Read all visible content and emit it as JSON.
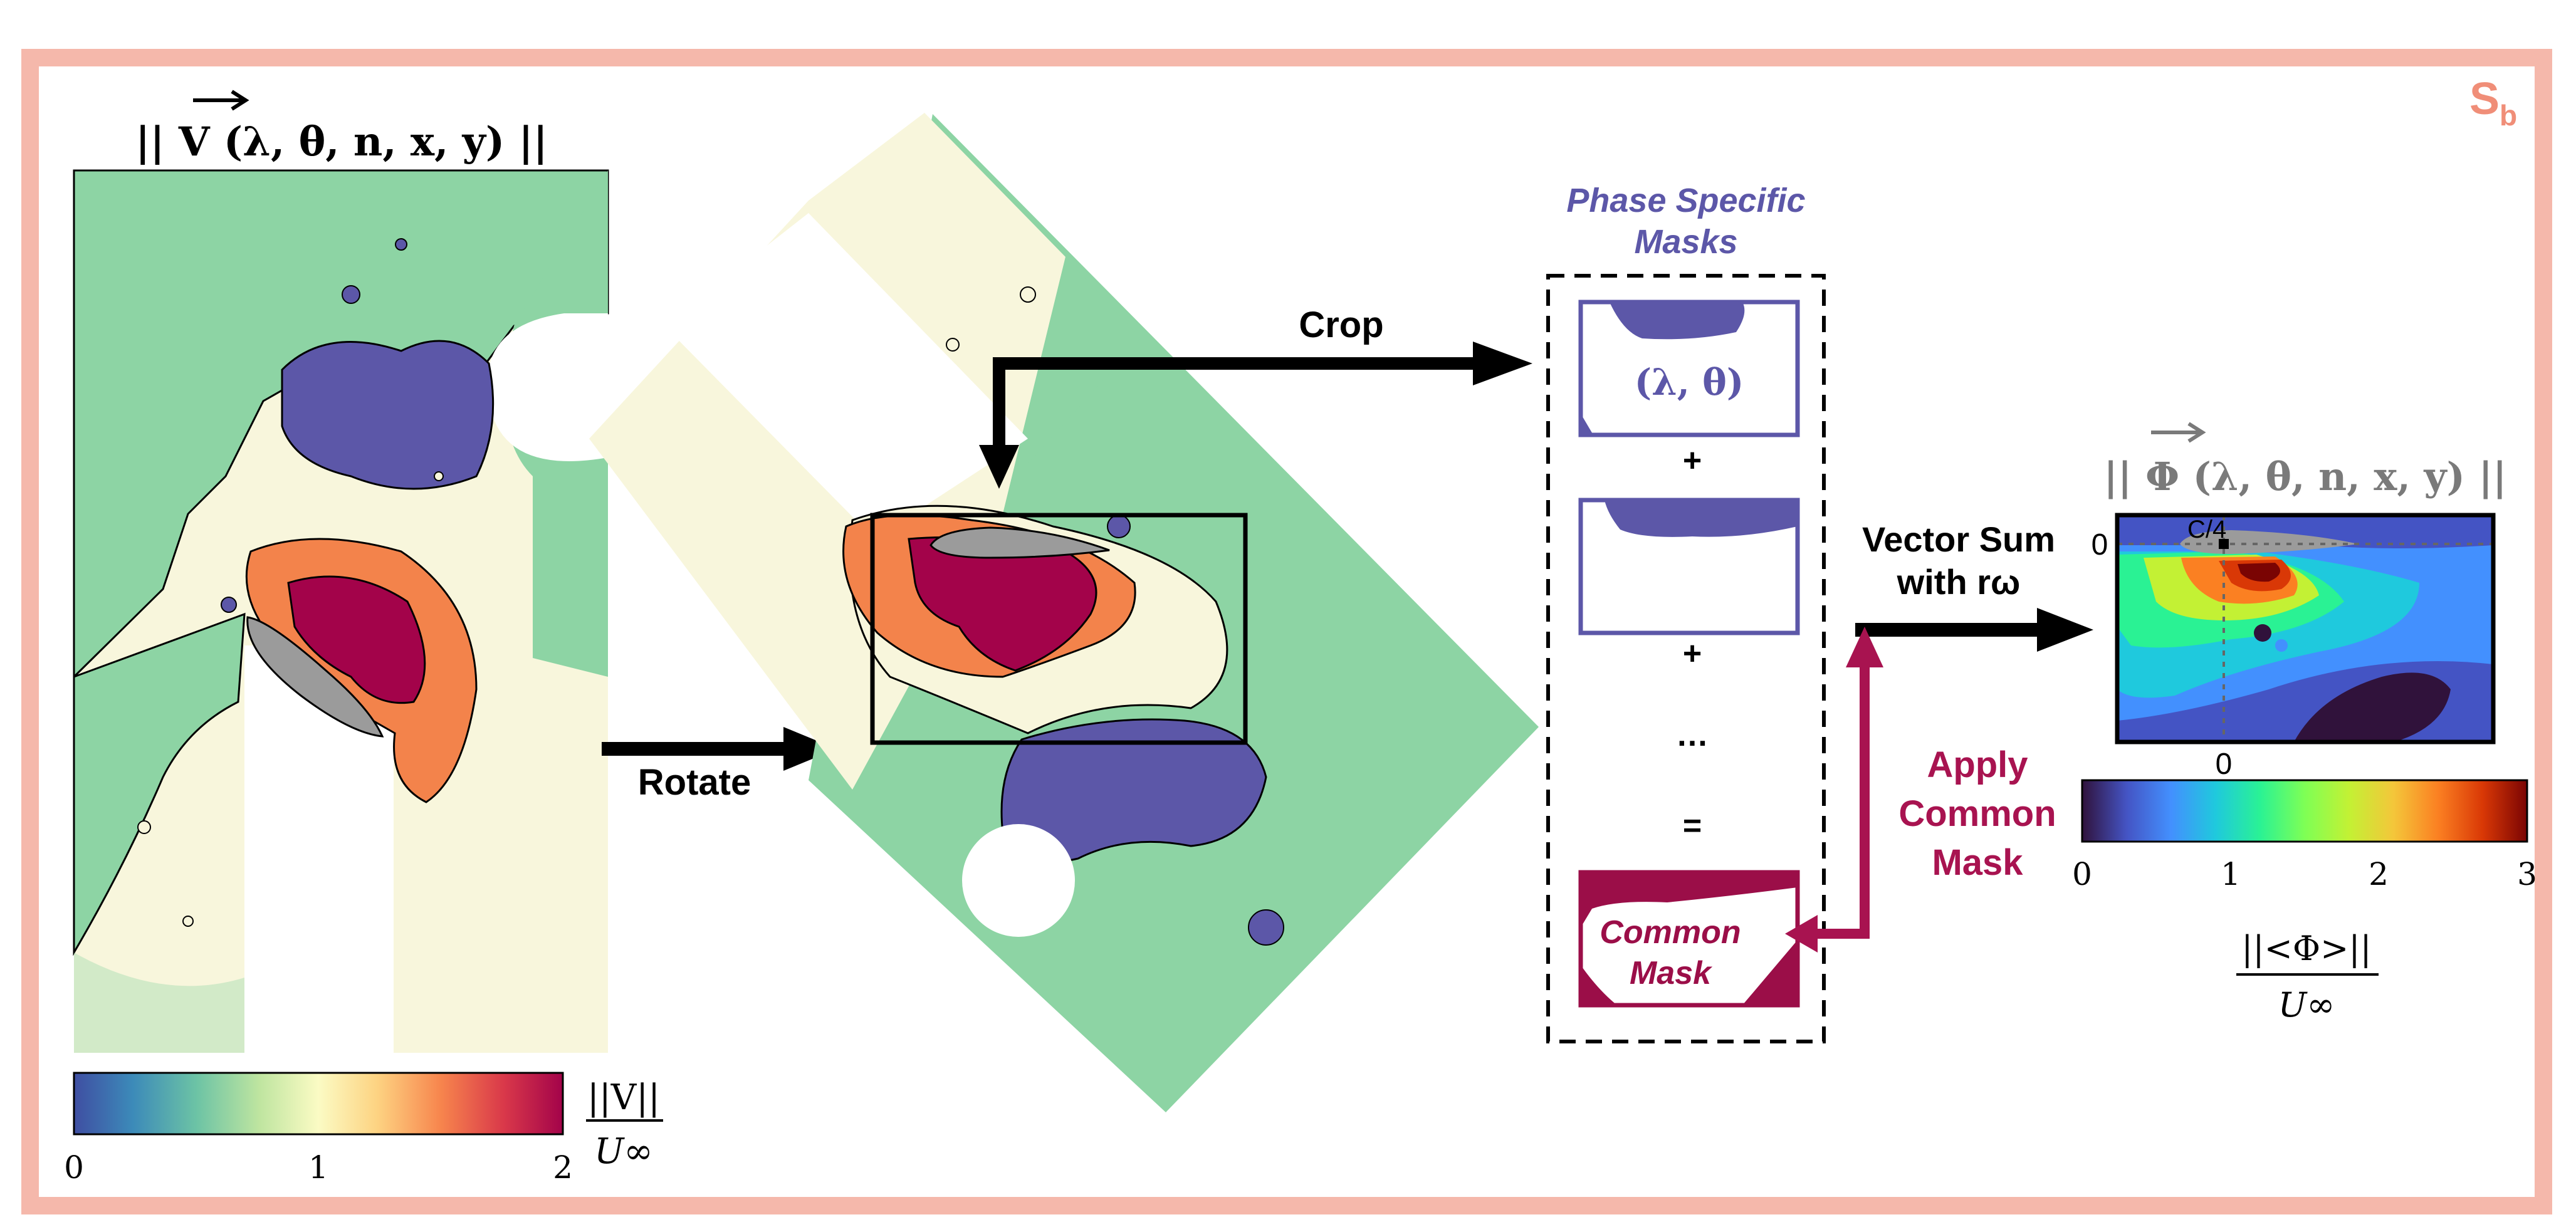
{
  "panel_label": "S",
  "panel_label_sub": "b",
  "colors": {
    "frame": "#f5b8ab",
    "panel_label": "#f08e78",
    "mask_purple": "#5c57a8",
    "common_mask": "#9b0e48",
    "apply_mask": "#a81350",
    "green": "#8dd4a4",
    "cream": "#f8f6dc",
    "orange": "#f3834b",
    "crimson": "#a3034a",
    "grey_title": "#7a7a7a"
  },
  "left_field": {
    "title": "|| V (λ, θ, n, x, y) ||",
    "colorbar_ticks": [
      "0",
      "1",
      "2"
    ],
    "colorbar_label_num": "||V||",
    "colorbar_label_den": "U∞"
  },
  "arrows": {
    "rotate_label": "Rotate",
    "crop_label": "Crop",
    "vector_sum_line1": "Vector Sum",
    "vector_sum_line2": "with rω",
    "apply_line1": "Apply",
    "apply_line2": "Common",
    "apply_line3": "Mask"
  },
  "masks": {
    "title_line1": "Phase Specific",
    "title_line2": "Masks",
    "mask1_label": "(λ, θ)",
    "plus1": "+",
    "plus2": "+",
    "ellipsis": "…",
    "equals": "=",
    "common_line1": "Common",
    "common_line2": "Mask"
  },
  "result": {
    "title": "||  Φ (λ, θ, n, x, y) ||",
    "c4_label": "C/4",
    "y_tick": "0",
    "x_tick": "0",
    "colorbar_ticks": [
      "0",
      "1",
      "2",
      "3"
    ],
    "colorbar_label_num": "||<Φ>||",
    "colorbar_label_den": "U∞"
  }
}
